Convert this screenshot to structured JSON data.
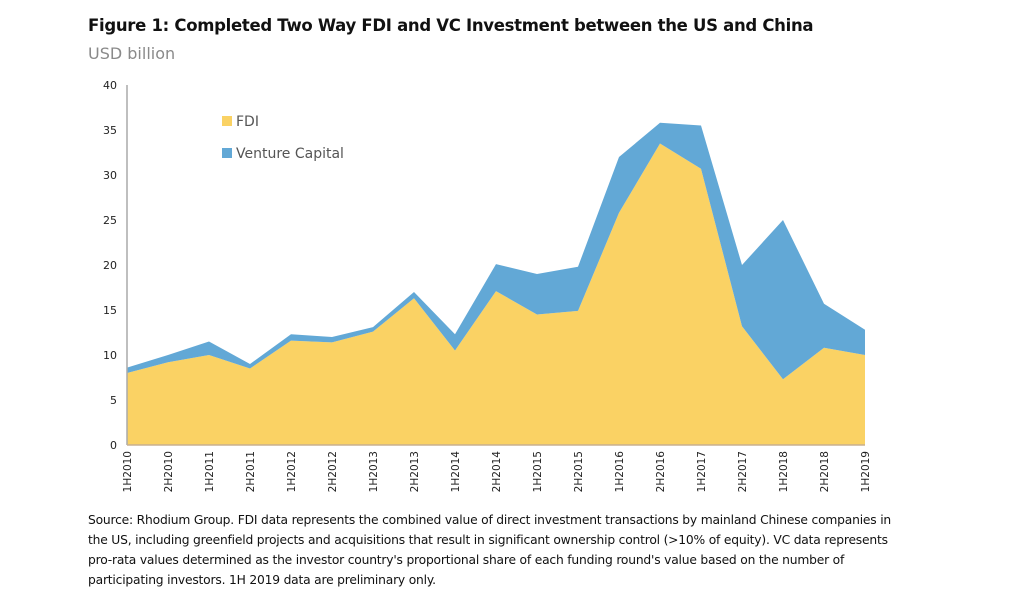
{
  "title": "Figure 1: Completed Two Way FDI and VC Investment between the US and China",
  "subtitle": "USD billion",
  "source": "Source: Rhodium Group. FDI data represents the combined value of direct investment transactions by mainland Chinese companies in the US, including greenfield projects and acquisitions that result in significant ownership control (>10% of equity). VC data represents pro-rata values determined as the investor country's proportional share of each funding round's value based on the number of participating investors. 1H 2019 data are preliminary only.",
  "chart_data": {
    "type": "area",
    "stacked": true,
    "title": "Figure 1: Completed Two Way FDI and VC Investment between the US and China",
    "ylabel": "USD billion",
    "ylim": [
      0,
      40
    ],
    "yticks": [
      "0",
      "5",
      "10",
      "15",
      "20",
      "25",
      "30",
      "35",
      "40"
    ],
    "grid": false,
    "legend_position": "top-left",
    "categories": [
      "1H2010",
      "2H2010",
      "1H2011",
      "2H2011",
      "1H2012",
      "2H2012",
      "1H2013",
      "2H2013",
      "1H2014",
      "2H2014",
      "1H2015",
      "2H2015",
      "1H2016",
      "2H2016",
      "1H2017",
      "2H2017",
      "1H2018",
      "2H2018",
      "1H2019"
    ],
    "series": [
      {
        "name": "FDI",
        "color": "#fad264",
        "values": [
          8.0,
          9.2,
          10.0,
          8.5,
          11.6,
          11.4,
          12.6,
          16.3,
          10.5,
          17.1,
          14.5,
          14.9,
          25.8,
          33.5,
          30.7,
          13.2,
          7.3,
          10.8,
          10.0
        ]
      },
      {
        "name": "Venture Capital",
        "color": "#62a8d6",
        "values": [
          0.6,
          0.8,
          1.5,
          0.5,
          0.7,
          0.6,
          0.5,
          0.7,
          1.8,
          3.0,
          4.5,
          4.9,
          6.2,
          2.3,
          4.8,
          6.8,
          17.7,
          4.9,
          2.8
        ]
      }
    ]
  }
}
